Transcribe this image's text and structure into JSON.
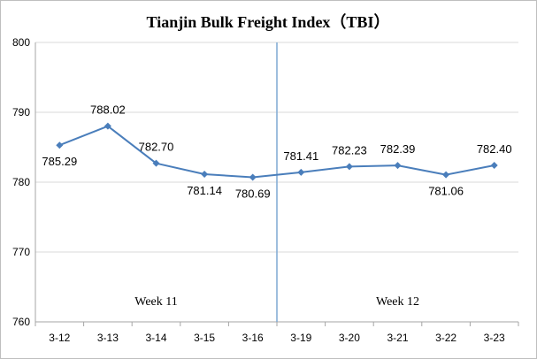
{
  "chart_data": {
    "type": "line",
    "title": "Tianjin Bulk Freight Index（TBI）",
    "categories": [
      "3-12",
      "3-13",
      "3-14",
      "3-15",
      "3-16",
      "3-19",
      "3-20",
      "3-21",
      "3-22",
      "3-23"
    ],
    "series": [
      {
        "values": [
          785.29,
          788.02,
          782.7,
          781.14,
          780.69,
          781.41,
          782.23,
          782.39,
          781.06,
          782.4
        ],
        "labels": [
          "785.29",
          "788.02",
          "782.70",
          "781.14",
          "780.69",
          "781.41",
          "782.23",
          "782.39",
          "781.06",
          "782.40"
        ],
        "color": "#4a7ebb"
      }
    ],
    "ylim": [
      760,
      800
    ],
    "yticks": [
      "760",
      "770",
      "780",
      "790",
      "800"
    ],
    "grid": true,
    "annotations": [
      {
        "text": "Week 11"
      },
      {
        "text": "Week 12"
      }
    ],
    "divider_after_category_index": 4,
    "divider_color": "#7fa9d4",
    "grid_color": "#d9d9d9",
    "axis_color": "#a6a6a6"
  }
}
